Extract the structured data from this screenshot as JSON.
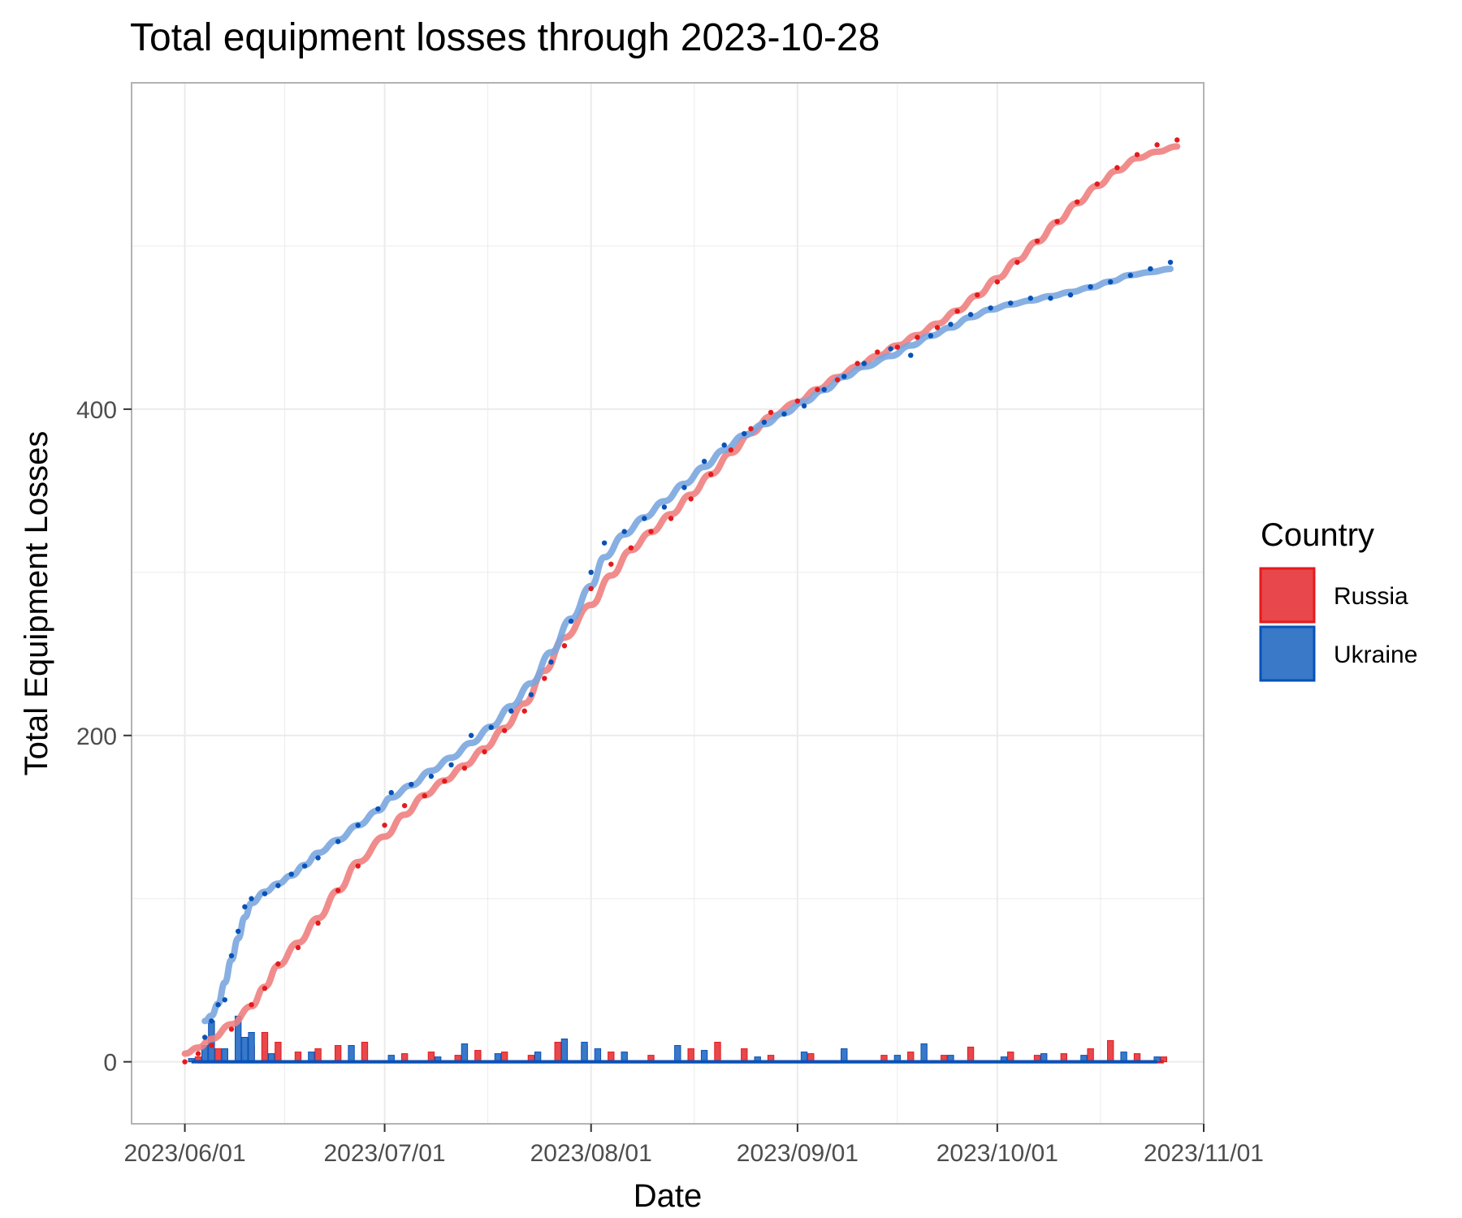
{
  "chart_data": {
    "type": "line",
    "title": "Total equipment losses through 2023-10-28",
    "xlabel": "Date",
    "ylabel": "Total Equipment Losses",
    "x_ticks": [
      "2023/06/01",
      "2023/07/01",
      "2023/08/01",
      "2023/09/01",
      "2023/10/01",
      "2023/11/01"
    ],
    "x_range": [
      "2023-05-24",
      "2023-11-01"
    ],
    "y_ticks": [
      0,
      200,
      400
    ],
    "ylim": [
      -38,
      600
    ],
    "grid": true,
    "legend": {
      "title": "Country",
      "placement": "right",
      "entries": [
        "Russia",
        "Ukraine"
      ]
    },
    "colors": {
      "Russia": "#e41a1c",
      "Russia_fill": "#e8474b",
      "Russia_smooth": "#f08080",
      "Ukraine": "#0652b8",
      "Ukraine_fill": "#3a78c8",
      "Ukraine_smooth": "#7aa6df"
    },
    "series": [
      {
        "name": "Russia",
        "cumulative": [
          {
            "x": "2023-06-01",
            "y": 0
          },
          {
            "x": "2023-06-03",
            "y": 5
          },
          {
            "x": "2023-06-05",
            "y": 10
          },
          {
            "x": "2023-06-08",
            "y": 20
          },
          {
            "x": "2023-06-11",
            "y": 35
          },
          {
            "x": "2023-06-13",
            "y": 45
          },
          {
            "x": "2023-06-15",
            "y": 60
          },
          {
            "x": "2023-06-18",
            "y": 70
          },
          {
            "x": "2023-06-21",
            "y": 85
          },
          {
            "x": "2023-06-24",
            "y": 105
          },
          {
            "x": "2023-06-27",
            "y": 120
          },
          {
            "x": "2023-07-01",
            "y": 145
          },
          {
            "x": "2023-07-04",
            "y": 157
          },
          {
            "x": "2023-07-07",
            "y": 163
          },
          {
            "x": "2023-07-10",
            "y": 172
          },
          {
            "x": "2023-07-13",
            "y": 180
          },
          {
            "x": "2023-07-16",
            "y": 190
          },
          {
            "x": "2023-07-19",
            "y": 203
          },
          {
            "x": "2023-07-22",
            "y": 215
          },
          {
            "x": "2023-07-25",
            "y": 235
          },
          {
            "x": "2023-07-28",
            "y": 255
          },
          {
            "x": "2023-08-01",
            "y": 290
          },
          {
            "x": "2023-08-04",
            "y": 305
          },
          {
            "x": "2023-08-07",
            "y": 315
          },
          {
            "x": "2023-08-10",
            "y": 325
          },
          {
            "x": "2023-08-13",
            "y": 333
          },
          {
            "x": "2023-08-16",
            "y": 345
          },
          {
            "x": "2023-08-19",
            "y": 360
          },
          {
            "x": "2023-08-22",
            "y": 375
          },
          {
            "x": "2023-08-25",
            "y": 388
          },
          {
            "x": "2023-08-28",
            "y": 398
          },
          {
            "x": "2023-09-01",
            "y": 405
          },
          {
            "x": "2023-09-04",
            "y": 412
          },
          {
            "x": "2023-09-07",
            "y": 418
          },
          {
            "x": "2023-09-10",
            "y": 428
          },
          {
            "x": "2023-09-13",
            "y": 435
          },
          {
            "x": "2023-09-16",
            "y": 438
          },
          {
            "x": "2023-09-19",
            "y": 444
          },
          {
            "x": "2023-09-22",
            "y": 450
          },
          {
            "x": "2023-09-25",
            "y": 460
          },
          {
            "x": "2023-09-28",
            "y": 470
          },
          {
            "x": "2023-10-01",
            "y": 478
          },
          {
            "x": "2023-10-04",
            "y": 490
          },
          {
            "x": "2023-10-07",
            "y": 503
          },
          {
            "x": "2023-10-10",
            "y": 515
          },
          {
            "x": "2023-10-13",
            "y": 527
          },
          {
            "x": "2023-10-16",
            "y": 538
          },
          {
            "x": "2023-10-19",
            "y": 548
          },
          {
            "x": "2023-10-22",
            "y": 556
          },
          {
            "x": "2023-10-25",
            "y": 562
          },
          {
            "x": "2023-10-28",
            "y": 565
          }
        ],
        "daily": [
          {
            "x": "2023-06-03",
            "y": 3
          },
          {
            "x": "2023-06-06",
            "y": 8
          },
          {
            "x": "2023-06-09",
            "y": 5
          },
          {
            "x": "2023-06-11",
            "y": 10
          },
          {
            "x": "2023-06-13",
            "y": 18
          },
          {
            "x": "2023-06-15",
            "y": 12
          },
          {
            "x": "2023-06-18",
            "y": 6
          },
          {
            "x": "2023-06-21",
            "y": 8
          },
          {
            "x": "2023-06-24",
            "y": 10
          },
          {
            "x": "2023-06-28",
            "y": 12
          },
          {
            "x": "2023-07-04",
            "y": 5
          },
          {
            "x": "2023-07-08",
            "y": 6
          },
          {
            "x": "2023-07-12",
            "y": 4
          },
          {
            "x": "2023-07-15",
            "y": 7
          },
          {
            "x": "2023-07-19",
            "y": 6
          },
          {
            "x": "2023-07-23",
            "y": 4
          },
          {
            "x": "2023-07-27",
            "y": 12
          },
          {
            "x": "2023-07-31",
            "y": 10
          },
          {
            "x": "2023-08-04",
            "y": 6
          },
          {
            "x": "2023-08-10",
            "y": 4
          },
          {
            "x": "2023-08-16",
            "y": 8
          },
          {
            "x": "2023-08-20",
            "y": 12
          },
          {
            "x": "2023-08-24",
            "y": 8
          },
          {
            "x": "2023-08-28",
            "y": 4
          },
          {
            "x": "2023-09-03",
            "y": 5
          },
          {
            "x": "2023-09-08",
            "y": 6
          },
          {
            "x": "2023-09-14",
            "y": 4
          },
          {
            "x": "2023-09-18",
            "y": 6
          },
          {
            "x": "2023-09-23",
            "y": 4
          },
          {
            "x": "2023-09-27",
            "y": 9
          },
          {
            "x": "2023-10-03",
            "y": 6
          },
          {
            "x": "2023-10-07",
            "y": 4
          },
          {
            "x": "2023-10-11",
            "y": 5
          },
          {
            "x": "2023-10-15",
            "y": 8
          },
          {
            "x": "2023-10-18",
            "y": 13
          },
          {
            "x": "2023-10-22",
            "y": 5
          },
          {
            "x": "2023-10-26",
            "y": 3
          }
        ]
      },
      {
        "name": "Ukraine",
        "cumulative": [
          {
            "x": "2023-06-04",
            "y": 15
          },
          {
            "x": "2023-06-05",
            "y": 25
          },
          {
            "x": "2023-06-06",
            "y": 35
          },
          {
            "x": "2023-06-07",
            "y": 38
          },
          {
            "x": "2023-06-08",
            "y": 65
          },
          {
            "x": "2023-06-09",
            "y": 80
          },
          {
            "x": "2023-06-10",
            "y": 95
          },
          {
            "x": "2023-06-11",
            "y": 100
          },
          {
            "x": "2023-06-13",
            "y": 103
          },
          {
            "x": "2023-06-15",
            "y": 108
          },
          {
            "x": "2023-06-17",
            "y": 115
          },
          {
            "x": "2023-06-19",
            "y": 120
          },
          {
            "x": "2023-06-21",
            "y": 125
          },
          {
            "x": "2023-06-24",
            "y": 135
          },
          {
            "x": "2023-06-27",
            "y": 145
          },
          {
            "x": "2023-06-30",
            "y": 155
          },
          {
            "x": "2023-07-02",
            "y": 165
          },
          {
            "x": "2023-07-05",
            "y": 170
          },
          {
            "x": "2023-07-08",
            "y": 175
          },
          {
            "x": "2023-07-11",
            "y": 182
          },
          {
            "x": "2023-07-14",
            "y": 200
          },
          {
            "x": "2023-07-17",
            "y": 205
          },
          {
            "x": "2023-07-20",
            "y": 215
          },
          {
            "x": "2023-07-23",
            "y": 225
          },
          {
            "x": "2023-07-26",
            "y": 245
          },
          {
            "x": "2023-07-29",
            "y": 270
          },
          {
            "x": "2023-08-01",
            "y": 300
          },
          {
            "x": "2023-08-03",
            "y": 318
          },
          {
            "x": "2023-08-06",
            "y": 325
          },
          {
            "x": "2023-08-09",
            "y": 333
          },
          {
            "x": "2023-08-12",
            "y": 340
          },
          {
            "x": "2023-08-15",
            "y": 352
          },
          {
            "x": "2023-08-18",
            "y": 368
          },
          {
            "x": "2023-08-21",
            "y": 378
          },
          {
            "x": "2023-08-24",
            "y": 385
          },
          {
            "x": "2023-08-27",
            "y": 392
          },
          {
            "x": "2023-08-30",
            "y": 397
          },
          {
            "x": "2023-09-02",
            "y": 402
          },
          {
            "x": "2023-09-05",
            "y": 412
          },
          {
            "x": "2023-09-08",
            "y": 420
          },
          {
            "x": "2023-09-11",
            "y": 428
          },
          {
            "x": "2023-09-15",
            "y": 437
          },
          {
            "x": "2023-09-18",
            "y": 433
          },
          {
            "x": "2023-09-21",
            "y": 445
          },
          {
            "x": "2023-09-24",
            "y": 452
          },
          {
            "x": "2023-09-27",
            "y": 458
          },
          {
            "x": "2023-09-30",
            "y": 462
          },
          {
            "x": "2023-10-03",
            "y": 465
          },
          {
            "x": "2023-10-06",
            "y": 468
          },
          {
            "x": "2023-10-09",
            "y": 468
          },
          {
            "x": "2023-10-12",
            "y": 470
          },
          {
            "x": "2023-10-15",
            "y": 475
          },
          {
            "x": "2023-10-18",
            "y": 478
          },
          {
            "x": "2023-10-21",
            "y": 482
          },
          {
            "x": "2023-10-24",
            "y": 486
          },
          {
            "x": "2023-10-27",
            "y": 490
          }
        ],
        "daily": [
          {
            "x": "2023-06-02",
            "y": 2
          },
          {
            "x": "2023-06-04",
            "y": 10
          },
          {
            "x": "2023-06-05",
            "y": 25
          },
          {
            "x": "2023-06-07",
            "y": 8
          },
          {
            "x": "2023-06-09",
            "y": 28
          },
          {
            "x": "2023-06-10",
            "y": 15
          },
          {
            "x": "2023-06-11",
            "y": 18
          },
          {
            "x": "2023-06-14",
            "y": 5
          },
          {
            "x": "2023-06-20",
            "y": 6
          },
          {
            "x": "2023-06-26",
            "y": 10
          },
          {
            "x": "2023-07-02",
            "y": 4
          },
          {
            "x": "2023-07-09",
            "y": 3
          },
          {
            "x": "2023-07-13",
            "y": 11
          },
          {
            "x": "2023-07-18",
            "y": 5
          },
          {
            "x": "2023-07-24",
            "y": 6
          },
          {
            "x": "2023-07-28",
            "y": 14
          },
          {
            "x": "2023-07-31",
            "y": 12
          },
          {
            "x": "2023-08-02",
            "y": 8
          },
          {
            "x": "2023-08-06",
            "y": 6
          },
          {
            "x": "2023-08-14",
            "y": 10
          },
          {
            "x": "2023-08-18",
            "y": 7
          },
          {
            "x": "2023-08-26",
            "y": 3
          },
          {
            "x": "2023-09-02",
            "y": 6
          },
          {
            "x": "2023-09-08",
            "y": 8
          },
          {
            "x": "2023-09-16",
            "y": 4
          },
          {
            "x": "2023-09-20",
            "y": 11
          },
          {
            "x": "2023-09-24",
            "y": 4
          },
          {
            "x": "2023-10-02",
            "y": 3
          },
          {
            "x": "2023-10-08",
            "y": 5
          },
          {
            "x": "2023-10-14",
            "y": 4
          },
          {
            "x": "2023-10-20",
            "y": 6
          },
          {
            "x": "2023-10-25",
            "y": 3
          }
        ]
      }
    ]
  }
}
